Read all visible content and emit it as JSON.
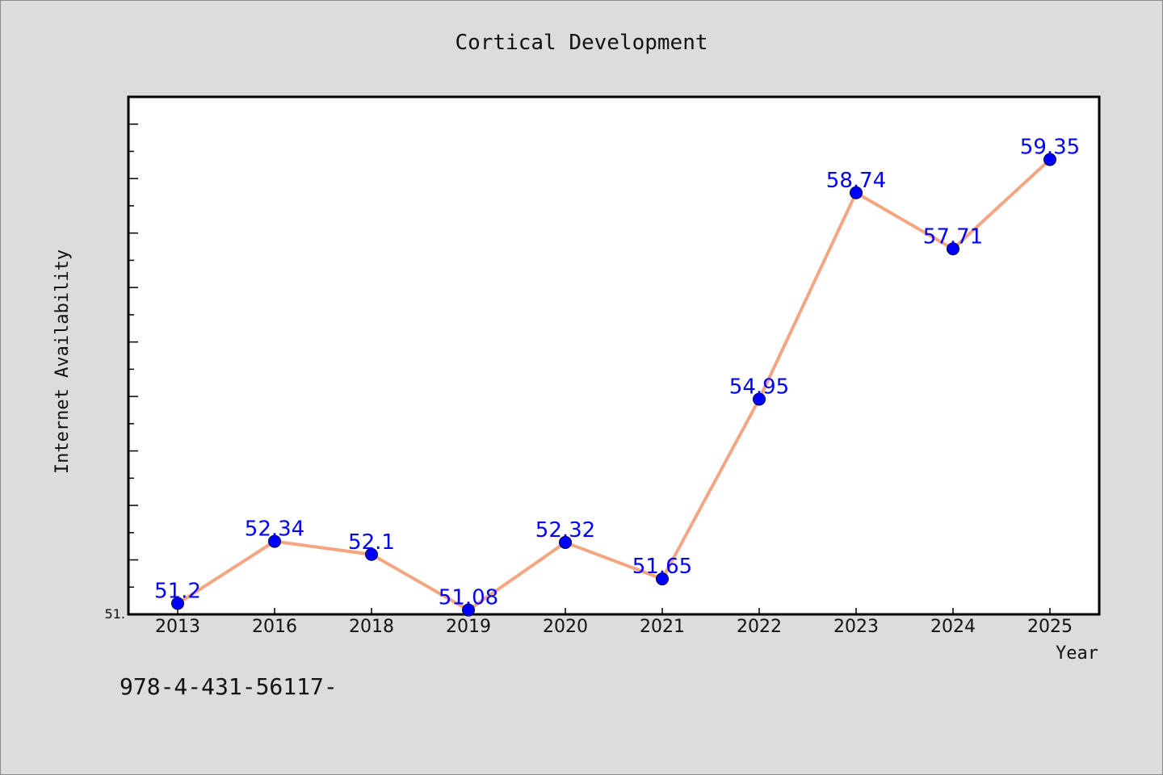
{
  "chart_data": {
    "type": "line",
    "title": "Cortical Development",
    "xlabel": "Year",
    "ylabel": "Internet Availability",
    "categories": [
      "2013",
      "2016",
      "2018",
      "2019",
      "2020",
      "2021",
      "2022",
      "2023",
      "2024",
      "2025"
    ],
    "series": [
      {
        "values": [
          51.2,
          52.34,
          52.1,
          51.08,
          52.32,
          51.65,
          54.95,
          58.74,
          57.71,
          59.35
        ],
        "data_labels": [
          "51.2",
          "52.34",
          "52.1",
          "51.08",
          "52.32",
          "51.65",
          "54.95",
          "58.74",
          "57.71",
          "59.35"
        ],
        "line_color": "#f4a582",
        "marker_color": "#0000ff"
      }
    ],
    "y_tick_labels": [
      "51."
    ],
    "ylim": [
      51.0,
      60.5
    ],
    "grid": false,
    "legend": "none"
  },
  "footer_text": "978-4-431-56117-",
  "colors": {
    "background": "#dcdcdc",
    "plot_background": "#ffffff",
    "line": "#f4a582",
    "marker": "#0000ff",
    "label": "#0000ff"
  }
}
